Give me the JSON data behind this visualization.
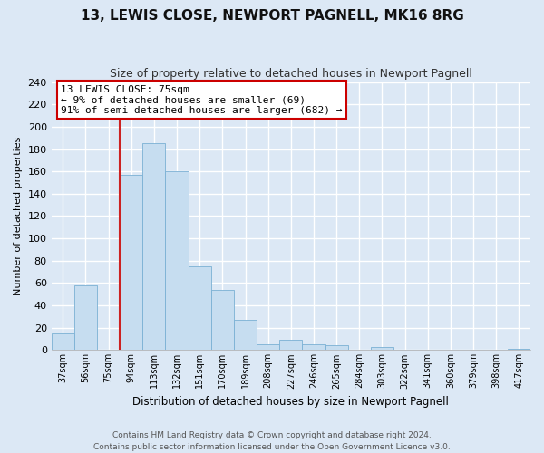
{
  "title": "13, LEWIS CLOSE, NEWPORT PAGNELL, MK16 8RG",
  "subtitle": "Size of property relative to detached houses in Newport Pagnell",
  "xlabel": "Distribution of detached houses by size in Newport Pagnell",
  "ylabel": "Number of detached properties",
  "bin_labels": [
    "37sqm",
    "56sqm",
    "75sqm",
    "94sqm",
    "113sqm",
    "132sqm",
    "151sqm",
    "170sqm",
    "189sqm",
    "208sqm",
    "227sqm",
    "246sqm",
    "265sqm",
    "284sqm",
    "303sqm",
    "322sqm",
    "341sqm",
    "360sqm",
    "379sqm",
    "398sqm",
    "417sqm"
  ],
  "bar_values": [
    15,
    58,
    0,
    157,
    185,
    160,
    75,
    54,
    27,
    5,
    9,
    5,
    4,
    0,
    3,
    0,
    0,
    0,
    0,
    0,
    1
  ],
  "bar_color": "#c6ddf0",
  "bar_edge_color": "#7ab0d4",
  "highlight_label": "13 LEWIS CLOSE: 75sqm",
  "annotation_line1": "← 9% of detached houses are smaller (69)",
  "annotation_line2": "91% of semi-detached houses are larger (682) →",
  "annotation_box_color": "#ffffff",
  "annotation_box_edge": "#cc0000",
  "vline_color": "#cc2222",
  "footer1": "Contains HM Land Registry data © Crown copyright and database right 2024.",
  "footer2": "Contains public sector information licensed under the Open Government Licence v3.0.",
  "ylim": [
    0,
    240
  ],
  "yticks": [
    0,
    20,
    40,
    60,
    80,
    100,
    120,
    140,
    160,
    180,
    200,
    220,
    240
  ],
  "bg_color": "#dce8f5",
  "plot_bg_color": "#dce8f5",
  "grid_color": "#ffffff",
  "vline_index": 3
}
